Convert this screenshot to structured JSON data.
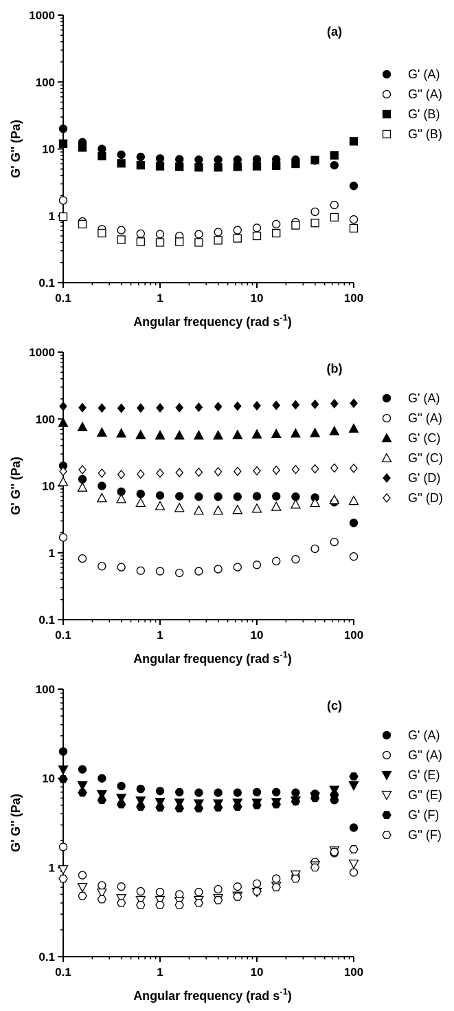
{
  "chart_data": [
    {
      "type": "scatter",
      "panel_label": "(a)",
      "xlabel": "Angular frequency (rad s",
      "xlabel_sup": "-1",
      "xlabel_end": ")",
      "ylabel": "G' G'' (Pa)",
      "x_scale": "log",
      "y_scale": "log",
      "xlim": [
        0.1,
        100
      ],
      "ylim": [
        0.1,
        1000
      ],
      "x_ticks": [
        "0.1",
        "1",
        "10",
        "100"
      ],
      "y_ticks": [
        "0.1",
        "1",
        "10",
        "100",
        "1000"
      ],
      "x": [
        0.1,
        0.158,
        0.251,
        0.398,
        0.631,
        1,
        1.585,
        2.512,
        3.981,
        6.31,
        10,
        15.85,
        25.12,
        39.81,
        63.1,
        100
      ],
      "series": [
        {
          "name": "G' (A)",
          "marker": "circle-filled",
          "values": [
            20,
            12.6,
            10,
            8.2,
            7.6,
            7.2,
            7.0,
            6.9,
            6.9,
            6.9,
            7.0,
            7.0,
            6.9,
            6.7,
            5.7,
            2.8
          ]
        },
        {
          "name": "G'' (A)",
          "marker": "circle-open",
          "values": [
            1.7,
            0.82,
            0.63,
            0.61,
            0.54,
            0.53,
            0.5,
            0.53,
            0.57,
            0.61,
            0.66,
            0.75,
            0.8,
            1.15,
            1.45,
            0.88
          ]
        },
        {
          "name": "G' (B)",
          "marker": "square-filled",
          "values": [
            12,
            10.5,
            7.8,
            6.1,
            5.7,
            5.5,
            5.4,
            5.3,
            5.3,
            5.4,
            5.5,
            5.6,
            6.0,
            6.8,
            8.0,
            13
          ]
        },
        {
          "name": "G'' (B)",
          "marker": "square-open",
          "values": [
            0.97,
            0.75,
            0.55,
            0.44,
            0.41,
            0.4,
            0.41,
            0.4,
            0.43,
            0.46,
            0.5,
            0.55,
            0.72,
            0.78,
            0.95,
            0.65
          ]
        }
      ],
      "legend": "right"
    },
    {
      "type": "scatter",
      "panel_label": "(b)",
      "xlabel": "Angular frequency (rad s",
      "xlabel_sup": "-1",
      "xlabel_end": ")",
      "ylabel": "G' G'' (Pa)",
      "x_scale": "log",
      "y_scale": "log",
      "xlim": [
        0.1,
        100
      ],
      "ylim": [
        0.1,
        1000
      ],
      "x_ticks": [
        "0.1",
        "1",
        "10",
        "100"
      ],
      "y_ticks": [
        "0.1",
        "1",
        "10",
        "100",
        "1000"
      ],
      "x": [
        0.1,
        0.158,
        0.251,
        0.398,
        0.631,
        1,
        1.585,
        2.512,
        3.981,
        6.31,
        10,
        15.85,
        25.12,
        39.81,
        63.1,
        100
      ],
      "series": [
        {
          "name": "G' (A)",
          "marker": "circle-filled",
          "values": [
            20,
            12.6,
            10,
            8.2,
            7.6,
            7.2,
            7.0,
            6.9,
            6.9,
            6.9,
            7.0,
            7.0,
            6.9,
            6.7,
            5.7,
            2.8
          ]
        },
        {
          "name": "G'' (A)",
          "marker": "circle-open",
          "values": [
            1.7,
            0.82,
            0.63,
            0.61,
            0.54,
            0.53,
            0.5,
            0.53,
            0.57,
            0.61,
            0.66,
            0.75,
            0.8,
            1.15,
            1.45,
            0.88
          ]
        },
        {
          "name": "G' (C)",
          "marker": "triangle-up-filled",
          "values": [
            88,
            76,
            63,
            61,
            58,
            57,
            57,
            57,
            57,
            58,
            59,
            60,
            61,
            62,
            66,
            72
          ]
        },
        {
          "name": "G'' (C)",
          "marker": "triangle-up-open",
          "values": [
            11.5,
            9.5,
            6.6,
            6.4,
            5.6,
            5.0,
            4.7,
            4.3,
            4.3,
            4.4,
            4.6,
            4.9,
            5.3,
            5.6,
            6.2,
            6.0
          ]
        },
        {
          "name": "G' (D)",
          "marker": "diamond-filled",
          "values": [
            155,
            148,
            146,
            145,
            146,
            147,
            148,
            150,
            153,
            156,
            158,
            160,
            163,
            166,
            170,
            172
          ]
        },
        {
          "name": "G'' (D)",
          "marker": "diamond-open",
          "values": [
            16.5,
            17.5,
            15.5,
            14.8,
            15.0,
            15.5,
            15.8,
            16.0,
            16.3,
            16.5,
            16.8,
            17.2,
            17.6,
            18.0,
            18.5,
            18.3
          ]
        }
      ],
      "legend": "right"
    },
    {
      "type": "scatter",
      "panel_label": "(c)",
      "xlabel": "Angular frequency (rad s",
      "xlabel_sup": "-1",
      "xlabel_end": ")",
      "ylabel": "G' G'' (Pa)",
      "x_scale": "log",
      "y_scale": "log",
      "xlim": [
        0.1,
        100
      ],
      "ylim": [
        0.1,
        100
      ],
      "x_ticks": [
        "0.1",
        "1",
        "10",
        "100"
      ],
      "y_ticks": [
        "0.1",
        "1",
        "10",
        "100"
      ],
      "x": [
        0.1,
        0.158,
        0.251,
        0.398,
        0.631,
        1,
        1.585,
        2.512,
        3.981,
        6.31,
        10,
        15.85,
        25.12,
        39.81,
        63.1,
        100
      ],
      "series": [
        {
          "name": "G' (A)",
          "marker": "circle-filled",
          "values": [
            20,
            12.6,
            10,
            8.2,
            7.6,
            7.2,
            7.0,
            6.9,
            6.9,
            6.9,
            7.0,
            7.0,
            6.9,
            6.7,
            5.7,
            2.8
          ]
        },
        {
          "name": "G'' (A)",
          "marker": "circle-open",
          "values": [
            1.7,
            0.82,
            0.63,
            0.61,
            0.54,
            0.53,
            0.5,
            0.53,
            0.57,
            0.61,
            0.66,
            0.75,
            0.8,
            1.15,
            1.45,
            0.88
          ]
        },
        {
          "name": "G' (E)",
          "marker": "triangle-down-filled",
          "values": [
            12.5,
            8.3,
            6.6,
            6.0,
            5.6,
            5.4,
            5.3,
            5.2,
            5.2,
            5.3,
            5.3,
            5.4,
            5.6,
            6.2,
            7.4,
            8.3
          ]
        },
        {
          "name": "G'' (E)",
          "marker": "triangle-down-open",
          "values": [
            0.95,
            0.6,
            0.52,
            0.45,
            0.43,
            0.43,
            0.42,
            0.43,
            0.45,
            0.48,
            0.53,
            0.62,
            0.83,
            1.05,
            1.55,
            1.1
          ]
        },
        {
          "name": "G' (F)",
          "marker": "hexagon-filled",
          "values": [
            9.8,
            6.9,
            5.7,
            5.1,
            4.8,
            4.7,
            4.6,
            4.6,
            4.7,
            4.8,
            5.0,
            5.1,
            5.5,
            6.0,
            6.5,
            10.5
          ]
        },
        {
          "name": "G'' (F)",
          "marker": "hexagon-open",
          "values": [
            0.75,
            0.48,
            0.44,
            0.4,
            0.38,
            0.38,
            0.38,
            0.4,
            0.43,
            0.47,
            0.54,
            0.6,
            0.75,
            1.0,
            1.5,
            1.6
          ]
        }
      ],
      "legend": "right"
    }
  ]
}
